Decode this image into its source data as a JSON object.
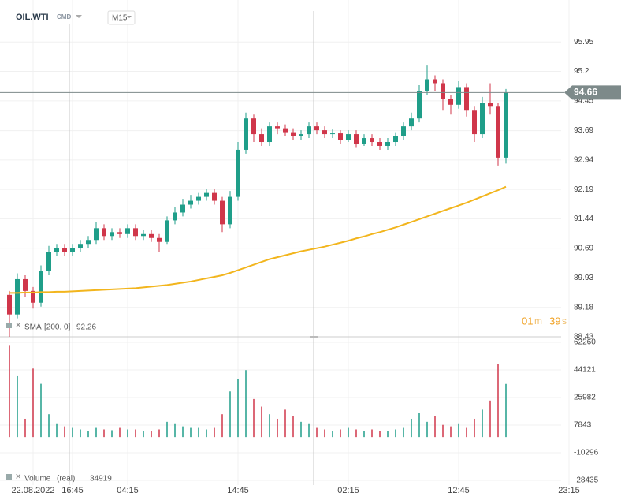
{
  "header": {
    "symbol": "OIL.WTI",
    "market": "CMD",
    "timeframe": "M15"
  },
  "chart_data": {
    "type": "candlestick",
    "categories": [
      null,
      null,
      null,
      "22.08.2022",
      null,
      null,
      null,
      null,
      "16:45",
      null,
      null,
      null,
      null,
      null,
      null,
      "04:15",
      null,
      null,
      null,
      null,
      null,
      null,
      null,
      null,
      null,
      null,
      null,
      null,
      null,
      "14:45",
      null,
      null,
      null,
      null,
      null,
      null,
      null,
      null,
      null,
      null,
      null,
      null,
      null,
      "02:15",
      null,
      null,
      null,
      null,
      null,
      null,
      null,
      null,
      null,
      null,
      null,
      null,
      null,
      "12:45",
      null,
      null,
      null,
      null,
      null,
      null,
      null,
      null,
      null,
      null,
      null,
      null,
      null,
      "23:15"
    ],
    "open": [
      89.5,
      89.0,
      89.9,
      89.6,
      89.3,
      90.1,
      90.6,
      90.7,
      90.6,
      90.7,
      90.8,
      90.9,
      91.2,
      91.0,
      91.1,
      91.05,
      91.2,
      91.0,
      91.05,
      90.95,
      90.85,
      91.4,
      91.6,
      91.8,
      91.9,
      92.0,
      92.1,
      91.9,
      91.3,
      92.0,
      93.2,
      94.0,
      93.6,
      93.4,
      93.8,
      93.75,
      93.65,
      93.55,
      93.6,
      93.8,
      93.7,
      93.6,
      93.62,
      93.45,
      93.6,
      93.35,
      93.5,
      93.4,
      93.3,
      93.4,
      93.55,
      93.8,
      94.0,
      94.7,
      95.0,
      94.9,
      94.5,
      94.35,
      94.8,
      94.2,
      93.6,
      94.4,
      94.3,
      93.0,
      null,
      null,
      null,
      null,
      null,
      null,
      null,
      null
    ],
    "high": [
      89.6,
      90.05,
      90.0,
      89.7,
      90.25,
      90.75,
      90.8,
      90.8,
      90.8,
      90.9,
      91.0,
      91.35,
      91.3,
      91.2,
      91.2,
      91.3,
      91.3,
      91.15,
      91.15,
      91.05,
      91.5,
      91.75,
      91.95,
      92.05,
      92.1,
      92.2,
      92.2,
      92.0,
      92.15,
      93.4,
      94.15,
      94.1,
      93.75,
      93.9,
      93.9,
      93.85,
      93.75,
      93.7,
      93.9,
      93.9,
      93.8,
      93.72,
      93.7,
      93.7,
      93.7,
      93.6,
      93.6,
      93.5,
      93.5,
      93.65,
      93.9,
      94.15,
      94.85,
      95.35,
      95.1,
      95.0,
      94.6,
      94.95,
      94.9,
      94.3,
      94.55,
      94.9,
      94.4,
      94.75,
      null,
      null,
      null,
      null,
      null,
      null,
      null,
      null
    ],
    "low": [
      88.43,
      88.9,
      89.45,
      89.15,
      89.2,
      90.0,
      90.5,
      90.5,
      90.5,
      90.6,
      90.7,
      90.8,
      90.9,
      90.9,
      90.95,
      90.95,
      90.9,
      90.9,
      90.85,
      90.6,
      90.8,
      91.3,
      91.5,
      91.7,
      91.8,
      91.9,
      91.8,
      91.1,
      91.2,
      91.9,
      93.1,
      93.4,
      93.3,
      93.3,
      93.6,
      93.55,
      93.45,
      93.45,
      93.5,
      93.6,
      93.5,
      93.5,
      93.35,
      93.4,
      93.25,
      93.3,
      93.3,
      93.2,
      93.2,
      93.3,
      93.45,
      93.7,
      93.9,
      94.6,
      94.7,
      94.2,
      94.1,
      94.25,
      94.05,
      93.4,
      93.5,
      94.1,
      92.8,
      92.85,
      null,
      null,
      null,
      null,
      null,
      null,
      null,
      null
    ],
    "close": [
      89.0,
      89.9,
      89.6,
      89.3,
      90.1,
      90.6,
      90.7,
      90.6,
      90.7,
      90.8,
      90.9,
      91.2,
      91.0,
      91.1,
      91.05,
      91.2,
      91.0,
      91.05,
      90.95,
      90.85,
      91.4,
      91.6,
      91.8,
      91.9,
      92.0,
      92.1,
      91.9,
      91.3,
      92.0,
      93.2,
      94.0,
      93.6,
      93.4,
      93.8,
      93.75,
      93.65,
      93.55,
      93.6,
      93.8,
      93.7,
      93.6,
      93.62,
      93.45,
      93.6,
      93.35,
      93.5,
      93.4,
      93.3,
      93.4,
      93.55,
      93.8,
      94.0,
      94.7,
      95.0,
      94.9,
      94.5,
      94.35,
      94.8,
      94.2,
      93.6,
      94.4,
      94.3,
      93.0,
      94.66,
      null,
      null,
      null,
      null,
      null,
      null,
      null,
      null
    ],
    "up_color": "#1f9e89",
    "down_color": "#d0364a",
    "ylim": [
      88.43,
      96.66
    ],
    "yticks": [
      95.95,
      95.2,
      94.45,
      93.69,
      92.94,
      92.19,
      91.44,
      90.69,
      89.93,
      89.18,
      88.43
    ],
    "sma": {
      "name": "SMA",
      "params": "[200,  0]",
      "color": "#f2b51d",
      "values": [
        89.55,
        89.55,
        89.56,
        89.56,
        89.57,
        89.57,
        89.58,
        89.58,
        89.59,
        89.6,
        89.61,
        89.62,
        89.63,
        89.64,
        89.65,
        89.66,
        89.67,
        89.69,
        89.71,
        89.73,
        89.75,
        89.78,
        89.81,
        89.84,
        89.88,
        89.92,
        89.96,
        90.0,
        90.06,
        90.13,
        90.2,
        90.27,
        90.34,
        90.41,
        90.46,
        90.51,
        90.56,
        90.61,
        90.65,
        90.69,
        90.73,
        90.78,
        90.83,
        90.88,
        90.94,
        90.99,
        91.05,
        91.1,
        91.16,
        91.22,
        91.29,
        91.36,
        91.43,
        91.5,
        91.57,
        91.64,
        91.71,
        91.78,
        91.85,
        91.93,
        92.01,
        92.09,
        92.17,
        92.26,
        null,
        null,
        null,
        null,
        null,
        null,
        null,
        null
      ]
    },
    "volume": {
      "name": "Volume",
      "mode": "(real)",
      "values": [
        60000,
        40000,
        12000,
        45000,
        35000,
        15000,
        9000,
        7000,
        6000,
        5000,
        4000,
        6000,
        5000,
        4500,
        6000,
        5000,
        5000,
        4000,
        4000,
        5000,
        10000,
        9000,
        7000,
        6000,
        6000,
        5000,
        6000,
        15000,
        30000,
        38000,
        44000,
        25000,
        20000,
        15000,
        12000,
        18000,
        14000,
        10000,
        9000,
        6000,
        5000,
        4000,
        5000,
        6000,
        5000,
        4000,
        5000,
        4000,
        4000,
        5000,
        6000,
        12000,
        16000,
        10000,
        14000,
        8000,
        7000,
        9000,
        6000,
        12000,
        18000,
        24000,
        48000,
        34919,
        null,
        null,
        null,
        null,
        null,
        null,
        null,
        null
      ],
      "ylim": [
        -31545,
        65888
      ],
      "yticks": [
        62260,
        44121,
        25982,
        7843,
        -10296,
        -28435
      ]
    },
    "countdown": {
      "minutes": "01",
      "m": "m",
      "seconds": "39",
      "s": "s"
    },
    "grid": true
  }
}
